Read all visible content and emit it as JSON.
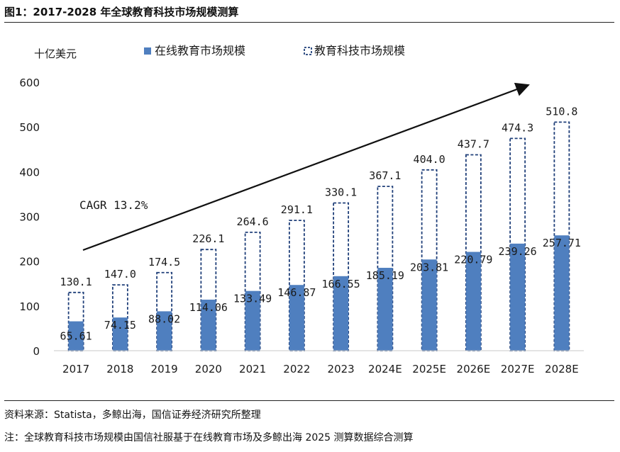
{
  "figure": {
    "title": "图1：2017-2028 年全球教育科技市场规模测算",
    "source": "资料来源：Statista，多鲸出海，国信证券经济研究所整理",
    "note": "注：全球教育科技市场规模由国信社服基于在线教育市场及多鲸出海 2025 测算数据综合测算"
  },
  "chart_data": {
    "type": "bar",
    "unit_label": "十亿美元",
    "categories": [
      "2017",
      "2018",
      "2019",
      "2020",
      "2021",
      "2022",
      "2023",
      "2024E",
      "2025E",
      "2026E",
      "2027E",
      "2028E"
    ],
    "series": [
      {
        "name": "在线教育市场规模",
        "values": [
          65.61,
          74.15,
          88.02,
          114.06,
          133.49,
          146.87,
          166.55,
          185.19,
          203.81,
          220.79,
          239.26,
          257.71
        ],
        "value_labels": [
          "65.61",
          "74.15",
          "88.02",
          "114.06",
          "133.49",
          "146.87",
          "166.55",
          "185.19",
          "203.81",
          "220.79",
          "239.26",
          "257.71"
        ]
      },
      {
        "name": "教育科技市场规模",
        "values": [
          130.1,
          147.0,
          174.5,
          226.1,
          264.6,
          291.1,
          330.1,
          367.1,
          404.0,
          437.7,
          474.3,
          510.8
        ],
        "value_labels": [
          "130.1",
          "147.0",
          "174.5",
          "226.1",
          "264.6",
          "291.1",
          "330.1",
          "367.1",
          "404.0",
          "437.7",
          "474.3",
          "510.8"
        ]
      }
    ],
    "ylim": [
      0,
      600
    ],
    "yticks": [
      0,
      100,
      200,
      300,
      400,
      500,
      600
    ],
    "grid": false,
    "legend_position": "top",
    "annotation": "CAGR 13.2%",
    "colors": {
      "online": "#4f7fbf",
      "total_border": "#1f3f79",
      "text": "#1a1a1a"
    }
  }
}
